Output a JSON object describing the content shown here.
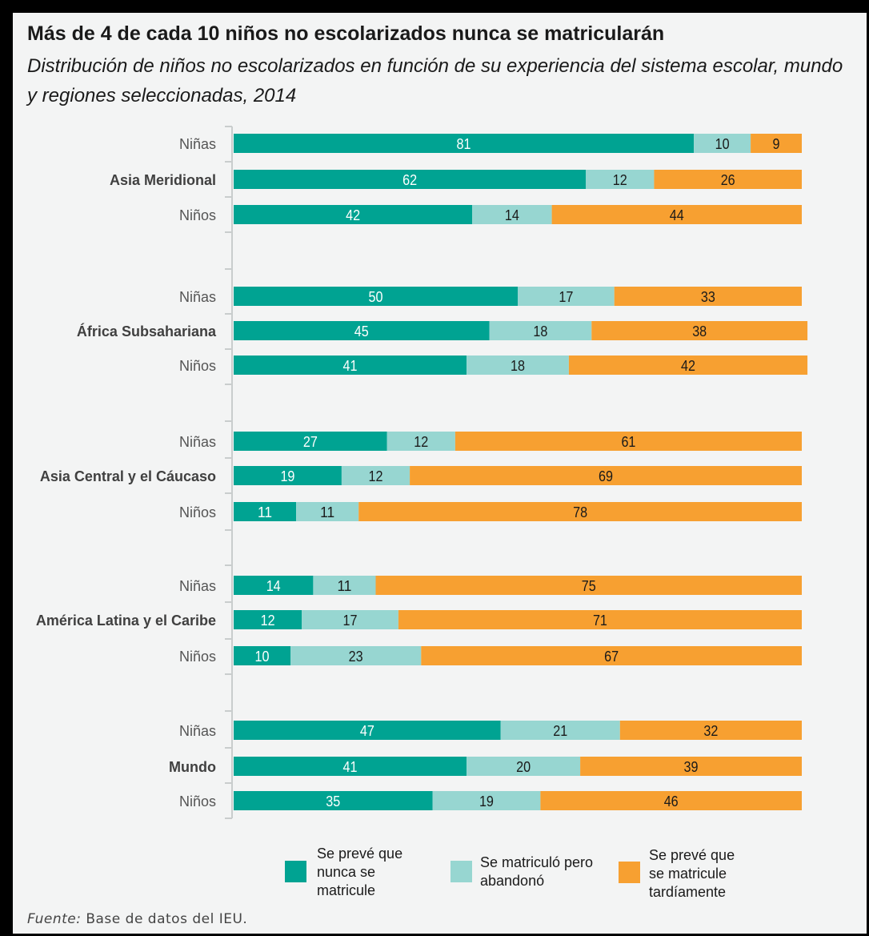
{
  "title": "Más de 4 de cada 10 niños no escolarizados nunca se matricularán",
  "subtitle": "Distribución de niños no escolarizados en función de su experiencia del sistema escolar, mundo y regiones seleccionadas, 2014",
  "source_prefix": "Fuente:",
  "source_text": " Base de datos del IEU.",
  "colors": {
    "never": "#00a392",
    "dropped": "#97d6d1",
    "late": "#f7a031",
    "axis": "#c9cdcd"
  },
  "chart_data": {
    "type": "bar",
    "orientation": "horizontal",
    "stacked": true,
    "xlim": [
      0,
      100
    ],
    "legend_position": "bottom",
    "series": [
      {
        "name": "Se prevé que nunca se matricule",
        "legend_lines": [
          "Se prevé que",
          "nunca se",
          "matricule"
        ],
        "color": "#00a392"
      },
      {
        "name": "Se matriculó pero abandonó",
        "legend_lines": [
          "Se matriculó pero",
          "abandonó"
        ],
        "color": "#97d6d1"
      },
      {
        "name": "Se prevé que se matricule tardíamente",
        "legend_lines": [
          "Se prevé que",
          "se matricule",
          "tardíamente"
        ],
        "color": "#f7a031"
      }
    ],
    "groups": [
      {
        "region": "Asia Meridional",
        "bars": [
          {
            "label": "Niñas",
            "values": [
              81,
              10,
              9
            ]
          },
          {
            "label": "",
            "values": [
              62,
              12,
              26
            ]
          },
          {
            "label": "Niños",
            "values": [
              42,
              14,
              44
            ]
          }
        ]
      },
      {
        "region": "África Subsahariana",
        "bars": [
          {
            "label": "Niñas",
            "values": [
              50,
              17,
              33
            ]
          },
          {
            "label": "",
            "values": [
              45,
              18,
              38
            ]
          },
          {
            "label": "Niños",
            "values": [
              41,
              18,
              42
            ]
          }
        ]
      },
      {
        "region": "Asia Central y el Cáucaso",
        "bars": [
          {
            "label": "Niñas",
            "values": [
              27,
              12,
              61
            ]
          },
          {
            "label": "",
            "values": [
              19,
              12,
              69
            ]
          },
          {
            "label": "Niños",
            "values": [
              11,
              11,
              78
            ]
          }
        ]
      },
      {
        "region": "América Latina y el Caribe",
        "bars": [
          {
            "label": "Niñas",
            "values": [
              14,
              11,
              75
            ]
          },
          {
            "label": "",
            "values": [
              12,
              17,
              71
            ]
          },
          {
            "label": "Niños",
            "values": [
              10,
              23,
              67
            ]
          }
        ]
      },
      {
        "region": "Mundo",
        "bars": [
          {
            "label": "Niñas",
            "values": [
              47,
              21,
              32
            ]
          },
          {
            "label": "",
            "values": [
              41,
              20,
              39
            ]
          },
          {
            "label": "Niños",
            "values": [
              35,
              19,
              46
            ]
          }
        ]
      }
    ]
  }
}
